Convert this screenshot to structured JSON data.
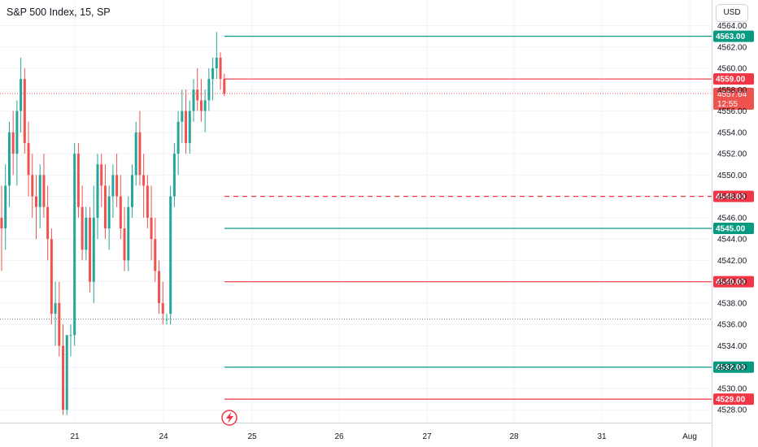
{
  "title": "S&P 500 Index, 15, SP",
  "currency_button": "USD",
  "colors": {
    "up": "#26a69a",
    "down": "#ef5350",
    "grid": "#f0f3fa",
    "support": "#089981",
    "resistance": "#f23645"
  },
  "chart_data": {
    "type": "candlestick",
    "ylim": [
      4526.8,
      4566.4
    ],
    "y_ticks": [
      "4528.00",
      "4530.00",
      "4532.00",
      "4534.00",
      "4536.00",
      "4538.00",
      "4540.00",
      "4542.00",
      "4544.00",
      "4546.00",
      "4548.00",
      "4550.00",
      "4552.00",
      "4554.00",
      "4556.00",
      "4558.00",
      "4560.00",
      "4562.00",
      "4564.00"
    ],
    "x_ticks": [
      "21",
      "24",
      "25",
      "26",
      "27",
      "28",
      "31",
      "Aug"
    ],
    "horizontal_levels": [
      {
        "value": 4563.0,
        "label": "4563.00",
        "color": "#089981",
        "style": "solid"
      },
      {
        "value": 4559.0,
        "label": "4559.00",
        "color": "#f23645",
        "style": "solid"
      },
      {
        "value": 4548.0,
        "label": "4548.00",
        "color": "#f23645",
        "style": "dashed"
      },
      {
        "value": 4545.0,
        "label": "4545.00",
        "color": "#089981",
        "style": "solid"
      },
      {
        "value": 4540.0,
        "label": "4540.00",
        "color": "#f23645",
        "style": "solid"
      },
      {
        "value": 4532.0,
        "label": "4532.00",
        "color": "#089981",
        "style": "solid"
      },
      {
        "value": 4529.0,
        "label": "4529.00",
        "color": "#f23645",
        "style": "solid"
      }
    ],
    "last_price": {
      "value": 4557.64,
      "label": "4557.64",
      "countdown": "12:55"
    },
    "prev_close_line": 4536.5,
    "candles": [
      [
        4546,
        4549,
        4541,
        4545
      ],
      [
        4545,
        4551,
        4543,
        4549
      ],
      [
        4549,
        4555,
        4547,
        4554
      ],
      [
        4554,
        4556,
        4550,
        4552
      ],
      [
        4552,
        4557,
        4549,
        4556
      ],
      [
        4556,
        4561,
        4554,
        4559
      ],
      [
        4559,
        4560,
        4552,
        4553
      ],
      [
        4553,
        4555,
        4548,
        4550
      ],
      [
        4550,
        4552,
        4546,
        4548
      ],
      [
        4548,
        4550,
        4544,
        4547
      ],
      [
        4547,
        4551,
        4545,
        4550
      ],
      [
        4550,
        4552,
        4546,
        4547
      ],
      [
        4547,
        4549,
        4542,
        4544
      ],
      [
        4544,
        4545,
        4536,
        4537
      ],
      [
        4537,
        4540,
        4534,
        4538
      ],
      [
        4538,
        4540,
        4533,
        4534
      ],
      [
        4534,
        4536,
        4527.5,
        4528
      ],
      [
        4528,
        4535,
        4527.5,
        4535
      ],
      [
        4535,
        4536,
        4533,
        4535
      ],
      [
        4535,
        4553,
        4534,
        4552
      ],
      [
        4552,
        4553,
        4546,
        4547
      ],
      [
        4547,
        4549,
        4542,
        4543
      ],
      [
        4543,
        4547,
        4542,
        4546
      ],
      [
        4546,
        4547,
        4539,
        4540
      ],
      [
        4540,
        4549,
        4538,
        4546
      ],
      [
        4546,
        4552,
        4544,
        4551
      ],
      [
        4551,
        4552,
        4547,
        4549
      ],
      [
        4549,
        4551,
        4544,
        4545
      ],
      [
        4545,
        4549,
        4543,
        4548
      ],
      [
        4548,
        4551,
        4546,
        4550
      ],
      [
        4550,
        4552,
        4547,
        4548
      ],
      [
        4548,
        4550,
        4544,
        4545
      ],
      [
        4545,
        4547,
        4541,
        4542
      ],
      [
        4542,
        4548,
        4541,
        4547
      ],
      [
        4547,
        4551,
        4546,
        4550
      ],
      [
        4550,
        4555,
        4549,
        4554
      ],
      [
        4554,
        4556,
        4549,
        4550
      ],
      [
        4550,
        4552,
        4546,
        4549
      ],
      [
        4549,
        4550,
        4545,
        4546
      ],
      [
        4546,
        4549,
        4542,
        4544
      ],
      [
        4544,
        4546,
        4540,
        4541
      ],
      [
        4541,
        4542,
        4537,
        4538
      ],
      [
        4538,
        4540,
        4536,
        4537
      ],
      [
        4536.5,
        4537,
        4536,
        4536.5
      ],
      [
        4537,
        4549,
        4536,
        4548
      ],
      [
        4548,
        4553,
        4547,
        4552
      ],
      [
        4552,
        4556,
        4550,
        4555
      ],
      [
        4555,
        4558,
        4553,
        4556
      ],
      [
        4556,
        4558,
        4552,
        4553
      ],
      [
        4553,
        4557,
        4552,
        4556
      ],
      [
        4556,
        4559,
        4555,
        4558
      ],
      [
        4558,
        4560,
        4556,
        4557
      ],
      [
        4557,
        4559,
        4555,
        4556
      ],
      [
        4556,
        4558,
        4554,
        4557
      ],
      [
        4557,
        4560,
        4556,
        4559
      ],
      [
        4559,
        4561,
        4557,
        4560
      ],
      [
        4560,
        4563.4,
        4559,
        4561
      ],
      [
        4561,
        4561.5,
        4558,
        4559
      ],
      [
        4559,
        4559.5,
        4557.4,
        4557.64
      ]
    ]
  }
}
